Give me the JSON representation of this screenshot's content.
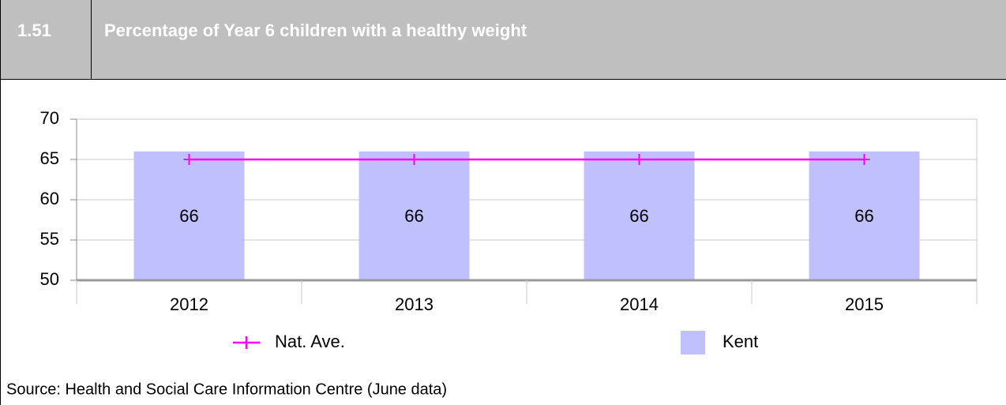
{
  "number": "1.51",
  "chart_data": {
    "type": "bar",
    "title": "Percentage of Year 6 children with a healthy weight",
    "categories": [
      "2012",
      "2013",
      "2014",
      "2015"
    ],
    "series": [
      {
        "name": "Nat. Ave.",
        "type": "line",
        "color": "#ff00ff",
        "values": [
          65,
          65,
          65,
          65
        ]
      },
      {
        "name": "Kent",
        "type": "bar",
        "color": "#c0c0ff",
        "values": [
          66,
          66,
          66,
          66
        ]
      }
    ],
    "ylim": [
      50,
      70
    ],
    "yticks": [
      50,
      55,
      60,
      65,
      70
    ],
    "grid": true
  },
  "source": "Source: Health and Social Care Information Centre (June data)"
}
